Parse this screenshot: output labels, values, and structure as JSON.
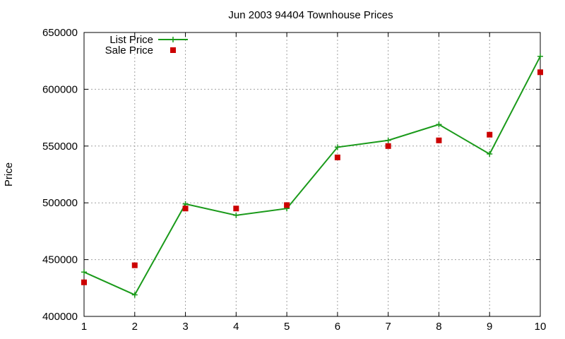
{
  "colors": {
    "list_price": "#1a9a1a",
    "sale_price": "#cc0000",
    "grid": "#a0a0a0",
    "axis": "#000000"
  },
  "chart_data": {
    "type": "line",
    "title": "Jun 2003 94404 Townhouse Prices",
    "xlabel": "",
    "ylabel": "Price",
    "x": [
      1,
      2,
      3,
      4,
      5,
      6,
      7,
      8,
      9,
      10
    ],
    "xlim": [
      1,
      10
    ],
    "ylim": [
      400000,
      650000
    ],
    "xticks": [
      "1",
      "2",
      "3",
      "4",
      "5",
      "6",
      "7",
      "8",
      "9",
      "10"
    ],
    "yticks": [
      "400000",
      "450000",
      "500000",
      "550000",
      "600000",
      "650000"
    ],
    "grid": true,
    "legend_position": "top-left",
    "series": [
      {
        "name": "List Price",
        "style": "line with plus markers",
        "values": [
          439000,
          419000,
          499000,
          489000,
          495000,
          549000,
          555000,
          569000,
          543000,
          629000
        ]
      },
      {
        "name": "Sale Price",
        "style": "square markers",
        "values": [
          430000,
          445000,
          495000,
          495000,
          498000,
          540000,
          550000,
          555000,
          560000,
          615000
        ]
      }
    ]
  }
}
